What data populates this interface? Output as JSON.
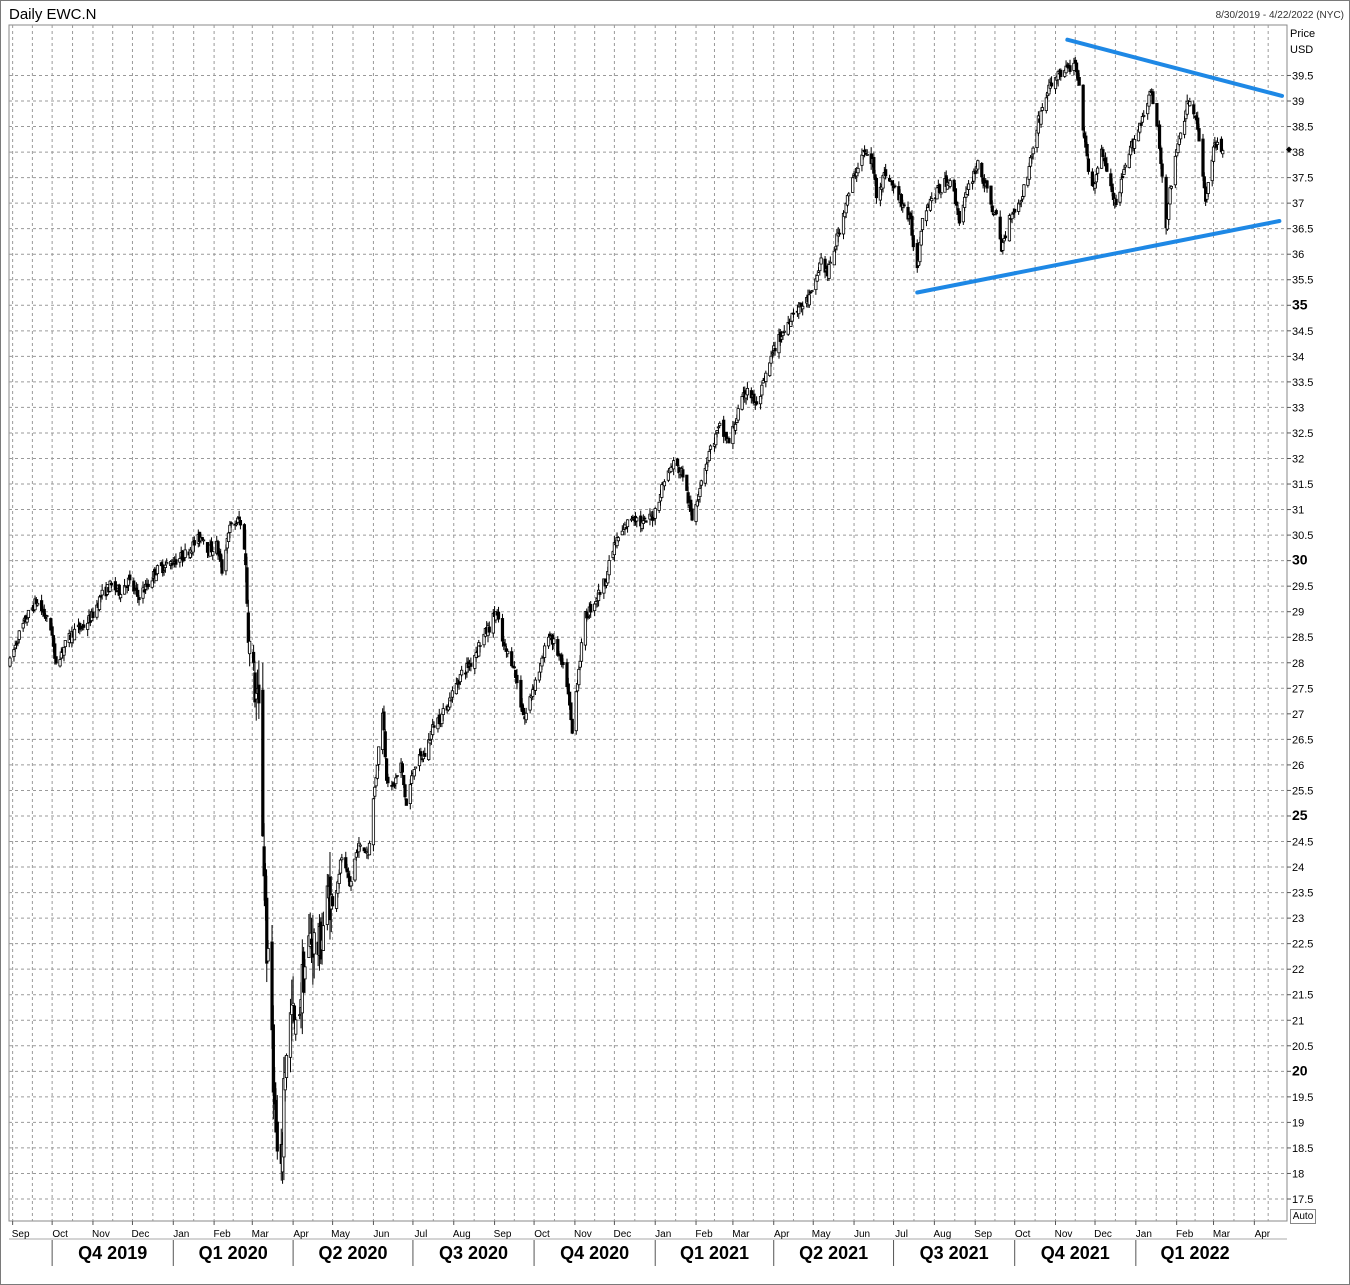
{
  "header": {
    "title": "Daily EWC.N",
    "date_range": "8/30/2019 - 4/22/2022 (NYC)",
    "price_label": "Price",
    "currency_label": "USD",
    "auto_label": "Auto"
  },
  "colors": {
    "candle": "#000000",
    "trendline": "#1e88e5",
    "grid": "#9a9a9a"
  },
  "chart_data": {
    "type": "candlestick",
    "title": "Daily EWC.N",
    "ylabel": "Price",
    "yunit": "USD",
    "x_range": [
      "2019-08-30",
      "2022-04-22"
    ],
    "ylim": [
      17.25,
      40.25
    ],
    "grid": true,
    "y_ticks": [
      {
        "value": 17.5,
        "label": "17.5",
        "major": false
      },
      {
        "value": 18,
        "label": "18",
        "major": false
      },
      {
        "value": 18.5,
        "label": "18.5",
        "major": false
      },
      {
        "value": 19,
        "label": "19",
        "major": false
      },
      {
        "value": 19.5,
        "label": "19.5",
        "major": false
      },
      {
        "value": 20,
        "label": "20",
        "major": true
      },
      {
        "value": 20.5,
        "label": "20.5",
        "major": false
      },
      {
        "value": 21,
        "label": "21",
        "major": false
      },
      {
        "value": 21.5,
        "label": "21.5",
        "major": false
      },
      {
        "value": 22,
        "label": "22",
        "major": false
      },
      {
        "value": 22.5,
        "label": "22.5",
        "major": false
      },
      {
        "value": 23,
        "label": "23",
        "major": false
      },
      {
        "value": 23.5,
        "label": "23.5",
        "major": false
      },
      {
        "value": 24,
        "label": "24",
        "major": false
      },
      {
        "value": 24.5,
        "label": "24.5",
        "major": false
      },
      {
        "value": 25,
        "label": "25",
        "major": true
      },
      {
        "value": 25.5,
        "label": "25.5",
        "major": false
      },
      {
        "value": 26,
        "label": "26",
        "major": false
      },
      {
        "value": 26.5,
        "label": "26.5",
        "major": false
      },
      {
        "value": 27,
        "label": "27",
        "major": false
      },
      {
        "value": 27.5,
        "label": "27.5",
        "major": false
      },
      {
        "value": 28,
        "label": "28",
        "major": false
      },
      {
        "value": 28.5,
        "label": "28.5",
        "major": false
      },
      {
        "value": 29,
        "label": "29",
        "major": false
      },
      {
        "value": 29.5,
        "label": "29.5",
        "major": false
      },
      {
        "value": 30,
        "label": "30",
        "major": true
      },
      {
        "value": 30.5,
        "label": "30.5",
        "major": false
      },
      {
        "value": 31,
        "label": "31",
        "major": false
      },
      {
        "value": 31.5,
        "label": "31.5",
        "major": false
      },
      {
        "value": 32,
        "label": "32",
        "major": false
      },
      {
        "value": 32.5,
        "label": "32.5",
        "major": false
      },
      {
        "value": 33,
        "label": "33",
        "major": false
      },
      {
        "value": 33.5,
        "label": "33.5",
        "major": false
      },
      {
        "value": 34,
        "label": "34",
        "major": false
      },
      {
        "value": 34.5,
        "label": "34.5",
        "major": false
      },
      {
        "value": 35,
        "label": "35",
        "major": true
      },
      {
        "value": 35.5,
        "label": "35.5",
        "major": false
      },
      {
        "value": 36,
        "label": "36",
        "major": false
      },
      {
        "value": 36.5,
        "label": "36.5",
        "major": false
      },
      {
        "value": 37,
        "label": "37",
        "major": false
      },
      {
        "value": 37.5,
        "label": "37.5",
        "major": false
      },
      {
        "value": 38,
        "label": "38",
        "major": false
      },
      {
        "value": 38.5,
        "label": "38.5",
        "major": false
      },
      {
        "value": 39,
        "label": "39",
        "major": false
      },
      {
        "value": 39.5,
        "label": "39.5",
        "major": false
      }
    ],
    "month_ticks": [
      {
        "label": "Sep",
        "date": "2019-09-01"
      },
      {
        "label": "Oct",
        "date": "2019-10-01"
      },
      {
        "label": "Nov",
        "date": "2019-11-01"
      },
      {
        "label": "Dec",
        "date": "2019-12-01"
      },
      {
        "label": "Jan",
        "date": "2020-01-01"
      },
      {
        "label": "Feb",
        "date": "2020-02-01"
      },
      {
        "label": "Mar",
        "date": "2020-03-01"
      },
      {
        "label": "Apr",
        "date": "2020-04-01"
      },
      {
        "label": "May",
        "date": "2020-05-01"
      },
      {
        "label": "Jun",
        "date": "2020-06-01"
      },
      {
        "label": "Jul",
        "date": "2020-07-01"
      },
      {
        "label": "Aug",
        "date": "2020-08-01"
      },
      {
        "label": "Sep",
        "date": "2020-09-01"
      },
      {
        "label": "Oct",
        "date": "2020-10-01"
      },
      {
        "label": "Nov",
        "date": "2020-11-01"
      },
      {
        "label": "Dec",
        "date": "2020-12-01"
      },
      {
        "label": "Jan",
        "date": "2021-01-01"
      },
      {
        "label": "Feb",
        "date": "2021-02-01"
      },
      {
        "label": "Mar",
        "date": "2021-03-01"
      },
      {
        "label": "Apr",
        "date": "2021-04-01"
      },
      {
        "label": "May",
        "date": "2021-05-01"
      },
      {
        "label": "Jun",
        "date": "2021-06-01"
      },
      {
        "label": "Jul",
        "date": "2021-07-01"
      },
      {
        "label": "Aug",
        "date": "2021-08-01"
      },
      {
        "label": "Sep",
        "date": "2021-09-01"
      },
      {
        "label": "Oct",
        "date": "2021-10-01"
      },
      {
        "label": "Nov",
        "date": "2021-11-01"
      },
      {
        "label": "Dec",
        "date": "2021-12-01"
      },
      {
        "label": "Jan",
        "date": "2022-01-01"
      },
      {
        "label": "Feb",
        "date": "2022-02-01"
      },
      {
        "label": "Mar",
        "date": "2022-03-01"
      },
      {
        "label": "Apr",
        "date": "2022-04-01"
      }
    ],
    "quarter_ticks": [
      {
        "label": "Q4 2019",
        "start": "2019-10-01",
        "end": "2020-01-01"
      },
      {
        "label": "Q1 2020",
        "start": "2020-01-01",
        "end": "2020-04-01"
      },
      {
        "label": "Q2 2020",
        "start": "2020-04-01",
        "end": "2020-07-01"
      },
      {
        "label": "Q3 2020",
        "start": "2020-07-01",
        "end": "2020-10-01"
      },
      {
        "label": "Q4 2020",
        "start": "2020-10-01",
        "end": "2021-01-01"
      },
      {
        "label": "Q1 2021",
        "start": "2021-01-01",
        "end": "2021-04-01"
      },
      {
        "label": "Q2 2021",
        "start": "2021-04-01",
        "end": "2021-07-01"
      },
      {
        "label": "Q3 2021",
        "start": "2021-07-01",
        "end": "2021-10-01"
      },
      {
        "label": "Q4 2021",
        "start": "2021-10-01",
        "end": "2022-01-01"
      },
      {
        "label": "Q1 2022",
        "start": "2022-01-01",
        "end": "2022-04-01"
      }
    ],
    "last_price_marker": 38.05,
    "price_path": [
      [
        "2019-08-30",
        28.0
      ],
      [
        "2019-09-05",
        28.5
      ],
      [
        "2019-09-12",
        28.9
      ],
      [
        "2019-09-19",
        29.2
      ],
      [
        "2019-09-26",
        28.9
      ],
      [
        "2019-10-01",
        28.6
      ],
      [
        "2019-10-03",
        28.0
      ],
      [
        "2019-10-10",
        28.3
      ],
      [
        "2019-10-17",
        28.6
      ],
      [
        "2019-10-24",
        28.7
      ],
      [
        "2019-10-31",
        28.9
      ],
      [
        "2019-11-07",
        29.3
      ],
      [
        "2019-11-14",
        29.5
      ],
      [
        "2019-11-21",
        29.4
      ],
      [
        "2019-11-28",
        29.6
      ],
      [
        "2019-12-05",
        29.3
      ],
      [
        "2019-12-12",
        29.5
      ],
      [
        "2019-12-19",
        29.8
      ],
      [
        "2019-12-26",
        29.9
      ],
      [
        "2020-01-02",
        30.0
      ],
      [
        "2020-01-09",
        30.1
      ],
      [
        "2020-01-16",
        30.3
      ],
      [
        "2020-01-23",
        30.5
      ],
      [
        "2020-01-28",
        30.2
      ],
      [
        "2020-02-03",
        30.3
      ],
      [
        "2020-02-07",
        29.8
      ],
      [
        "2020-02-12",
        30.6
      ],
      [
        "2020-02-20",
        30.8
      ],
      [
        "2020-02-24",
        30.3
      ],
      [
        "2020-02-26",
        29.3
      ],
      [
        "2020-02-28",
        28.3
      ],
      [
        "2020-03-03",
        27.5
      ],
      [
        "2020-03-06",
        27.0
      ],
      [
        "2020-03-09",
        24.8
      ],
      [
        "2020-03-12",
        22.4
      ],
      [
        "2020-03-16",
        20.8
      ],
      [
        "2020-03-18",
        19.2
      ],
      [
        "2020-03-20",
        18.3
      ],
      [
        "2020-03-23",
        17.8
      ],
      [
        "2020-03-25",
        19.8
      ],
      [
        "2020-03-27",
        20.5
      ],
      [
        "2020-03-31",
        21.2
      ],
      [
        "2020-04-03",
        20.7
      ],
      [
        "2020-04-08",
        21.8
      ],
      [
        "2020-04-14",
        22.6
      ],
      [
        "2020-04-21",
        22.4
      ],
      [
        "2020-04-28",
        23.5
      ],
      [
        "2020-05-01",
        23.2
      ],
      [
        "2020-05-08",
        24.2
      ],
      [
        "2020-05-14",
        23.6
      ],
      [
        "2020-05-20",
        24.4
      ],
      [
        "2020-05-28",
        24.3
      ],
      [
        "2020-06-03",
        25.8
      ],
      [
        "2020-06-08",
        27.1
      ],
      [
        "2020-06-11",
        25.8
      ],
      [
        "2020-06-15",
        25.5
      ],
      [
        "2020-06-22",
        26.0
      ],
      [
        "2020-06-26",
        25.2
      ],
      [
        "2020-07-02",
        26.0
      ],
      [
        "2020-07-10",
        26.2
      ],
      [
        "2020-07-17",
        26.8
      ],
      [
        "2020-07-24",
        27.0
      ],
      [
        "2020-07-31",
        27.4
      ],
      [
        "2020-08-07",
        27.8
      ],
      [
        "2020-08-14",
        28.0
      ],
      [
        "2020-08-21",
        28.4
      ],
      [
        "2020-08-28",
        28.7
      ],
      [
        "2020-09-02",
        29.0
      ],
      [
        "2020-09-08",
        28.3
      ],
      [
        "2020-09-15",
        28.0
      ],
      [
        "2020-09-21",
        27.2
      ],
      [
        "2020-09-24",
        26.9
      ],
      [
        "2020-09-30",
        27.5
      ],
      [
        "2020-10-07",
        28.0
      ],
      [
        "2020-10-12",
        28.6
      ],
      [
        "2020-10-19",
        28.2
      ],
      [
        "2020-10-26",
        27.6
      ],
      [
        "2020-10-30",
        26.6
      ],
      [
        "2020-11-03",
        27.7
      ],
      [
        "2020-11-09",
        28.9
      ],
      [
        "2020-11-16",
        29.2
      ],
      [
        "2020-11-24",
        29.6
      ],
      [
        "2020-12-01",
        30.3
      ],
      [
        "2020-12-08",
        30.6
      ],
      [
        "2020-12-15",
        30.9
      ],
      [
        "2020-12-22",
        30.7
      ],
      [
        "2020-12-31",
        30.9
      ],
      [
        "2021-01-08",
        31.6
      ],
      [
        "2021-01-15",
        31.9
      ],
      [
        "2021-01-22",
        31.7
      ],
      [
        "2021-01-29",
        30.8
      ],
      [
        "2021-02-05",
        31.6
      ],
      [
        "2021-02-12",
        32.2
      ],
      [
        "2021-02-19",
        32.6
      ],
      [
        "2021-02-26",
        32.3
      ],
      [
        "2021-03-05",
        32.9
      ],
      [
        "2021-03-12",
        33.4
      ],
      [
        "2021-03-19",
        33.0
      ],
      [
        "2021-03-26",
        33.6
      ],
      [
        "2021-04-02",
        34.2
      ],
      [
        "2021-04-09",
        34.5
      ],
      [
        "2021-04-16",
        34.9
      ],
      [
        "2021-04-23",
        35.0
      ],
      [
        "2021-04-30",
        35.2
      ],
      [
        "2021-05-07",
        35.9
      ],
      [
        "2021-05-12",
        35.6
      ],
      [
        "2021-05-19",
        36.3
      ],
      [
        "2021-05-26",
        37.0
      ],
      [
        "2021-06-02",
        37.6
      ],
      [
        "2021-06-08",
        38.0
      ],
      [
        "2021-06-15",
        37.8
      ],
      [
        "2021-06-18",
        37.2
      ],
      [
        "2021-06-25",
        37.6
      ],
      [
        "2021-07-01",
        37.3
      ],
      [
        "2021-07-08",
        37.0
      ],
      [
        "2021-07-14",
        36.6
      ],
      [
        "2021-07-19",
        35.7
      ],
      [
        "2021-07-23",
        36.8
      ],
      [
        "2021-07-30",
        37.1
      ],
      [
        "2021-08-06",
        37.3
      ],
      [
        "2021-08-13",
        37.5
      ],
      [
        "2021-08-20",
        36.7
      ],
      [
        "2021-08-27",
        37.3
      ],
      [
        "2021-09-03",
        37.8
      ],
      [
        "2021-09-10",
        37.2
      ],
      [
        "2021-09-17",
        36.7
      ],
      [
        "2021-09-21",
        36.1
      ],
      [
        "2021-09-28",
        36.8
      ],
      [
        "2021-10-05",
        37.0
      ],
      [
        "2021-10-12",
        37.7
      ],
      [
        "2021-10-19",
        38.6
      ],
      [
        "2021-10-26",
        39.2
      ],
      [
        "2021-11-02",
        39.5
      ],
      [
        "2021-11-09",
        39.6
      ],
      [
        "2021-11-16",
        39.7
      ],
      [
        "2021-11-19",
        39.2
      ],
      [
        "2021-11-26",
        37.6
      ],
      [
        "2021-12-01",
        37.3
      ],
      [
        "2021-12-06",
        38.1
      ],
      [
        "2021-12-10",
        37.6
      ],
      [
        "2021-12-17",
        36.9
      ],
      [
        "2021-12-23",
        37.6
      ],
      [
        "2021-12-30",
        38.2
      ],
      [
        "2022-01-05",
        38.6
      ],
      [
        "2022-01-12",
        39.2
      ],
      [
        "2022-01-18",
        38.4
      ],
      [
        "2022-01-24",
        36.6
      ],
      [
        "2022-01-28",
        37.4
      ],
      [
        "2022-02-04",
        38.4
      ],
      [
        "2022-02-10",
        39.0
      ],
      [
        "2022-02-16",
        38.6
      ],
      [
        "2022-02-23",
        37.1
      ],
      [
        "2022-02-28",
        37.9
      ],
      [
        "2022-03-04",
        38.3
      ],
      [
        "2022-03-08",
        38.0
      ]
    ],
    "trendlines": [
      {
        "name": "upper",
        "start": [
          "2021-11-10",
          40.2
        ],
        "end": [
          "2022-04-22",
          39.1
        ]
      },
      {
        "name": "lower",
        "start": [
          "2021-07-19",
          35.25
        ],
        "end": [
          "2022-04-20",
          36.65
        ]
      }
    ]
  }
}
